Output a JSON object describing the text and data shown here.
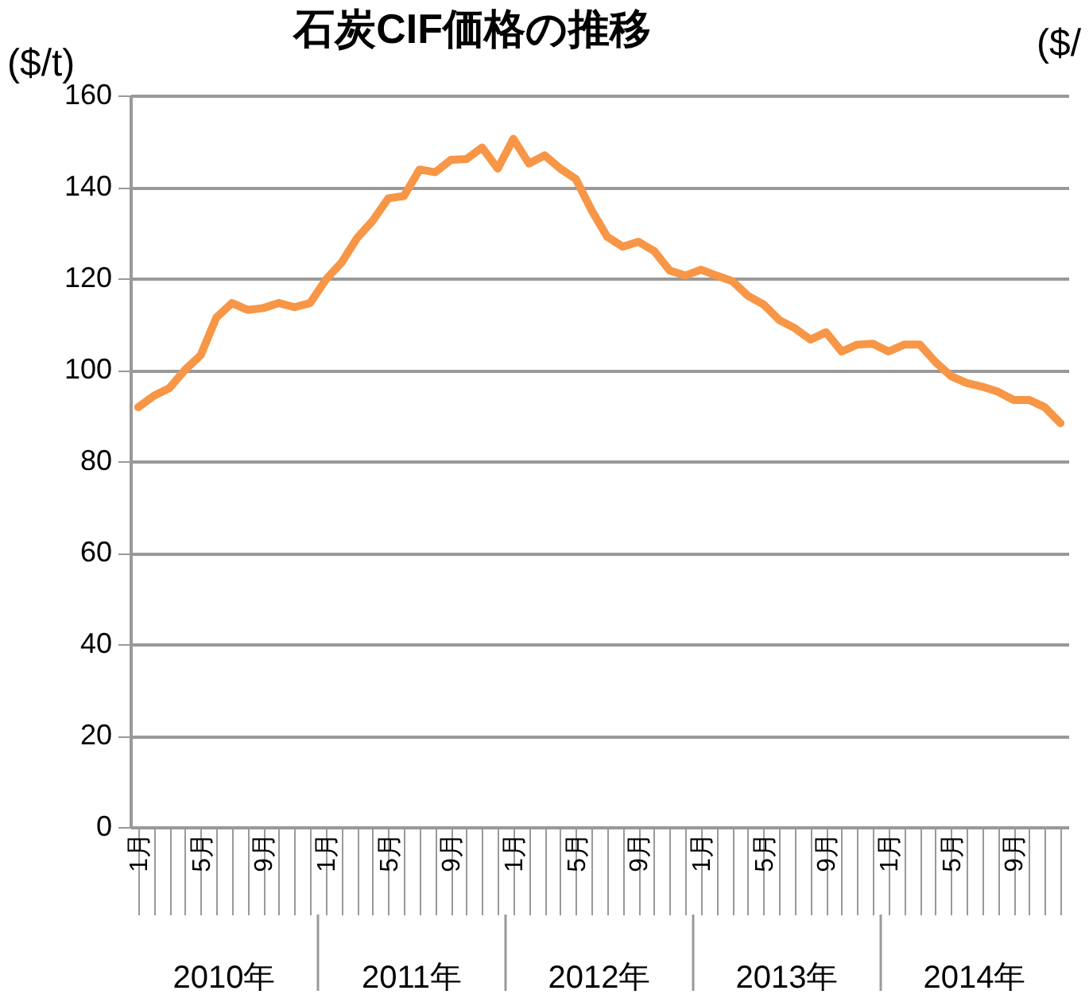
{
  "chart_data": {
    "type": "line",
    "title": "石炭CIF価格の推移",
    "ylabel": "($/t)",
    "y2label": "($/",
    "categories": [
      "1月",
      null,
      null,
      null,
      "5月",
      null,
      null,
      null,
      "9月",
      null,
      null,
      null,
      "1月",
      null,
      null,
      null,
      "5月",
      null,
      null,
      null,
      "9月",
      null,
      null,
      null,
      "1月",
      null,
      null,
      null,
      "5月",
      null,
      null,
      null,
      "9月",
      null,
      null,
      null,
      "1月",
      null,
      null,
      null,
      "5月",
      null,
      null,
      null,
      "9月",
      null,
      null,
      null,
      "1月",
      null,
      null,
      null,
      "5月",
      null,
      null,
      null,
      "9月",
      null,
      null,
      null
    ],
    "annotations": [
      "2010年",
      "2011年",
      "2012年",
      "2013年",
      "2014年"
    ],
    "series": [
      {
        "color": "#f79646",
        "values": [
          91.8,
          94.3,
          96,
          100,
          103.2,
          111.4,
          114.6,
          113.1,
          113.5,
          114.6,
          113.7,
          114.6,
          119.7,
          123.4,
          128.8,
          132.6,
          137.5,
          138,
          143.8,
          143.2,
          145.9,
          146.1,
          148.6,
          144,
          150.5,
          145.1,
          146.9,
          144,
          141.7,
          134.9,
          129.1,
          126.9,
          128,
          126,
          121.7,
          120.6,
          121.9,
          120.6,
          119.4,
          116.2,
          114.3,
          110.9,
          109.1,
          106.6,
          108.2,
          104,
          105.5,
          105.7,
          104,
          105.5,
          105.5,
          101.7,
          98.6,
          97.1,
          96.3,
          95.2,
          93.4,
          93.4,
          91.8,
          88.3
        ]
      }
    ],
    "ylim": [
      0,
      160
    ],
    "yticks": [
      0,
      20,
      40,
      60,
      80,
      100,
      120,
      140,
      160
    ],
    "grid": "y",
    "marker": "none",
    "line_style": "solid"
  }
}
